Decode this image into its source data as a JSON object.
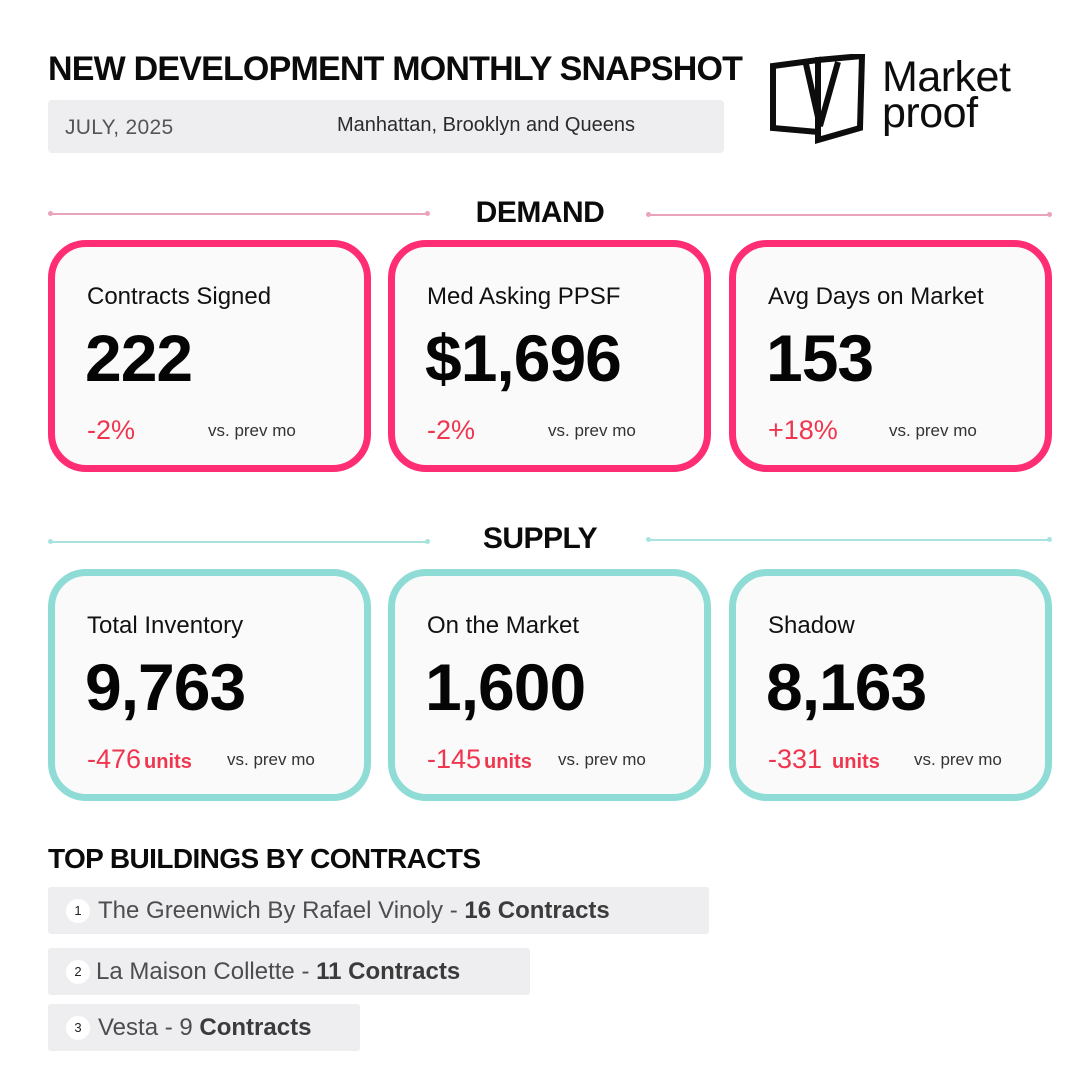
{
  "header": {
    "title": "NEW DEVELOPMENT MONTHLY SNAPSHOT",
    "date": "JULY, 2025",
    "area": "Manhattan, Brooklyn and Queens"
  },
  "logo": {
    "line1": "Market",
    "line2": "proof"
  },
  "demand": {
    "heading": "DEMAND",
    "color": "#ff2d73",
    "cards": [
      {
        "label": "Contracts Signed",
        "value": "222",
        "change": "-2%",
        "units": "",
        "vs": "vs. prev mo"
      },
      {
        "label": "Med Asking PPSF",
        "value": "$1,696",
        "change": "-2%",
        "units": "",
        "vs": "vs. prev mo"
      },
      {
        "label": "Avg Days on Market",
        "value": "153",
        "change": "+18%",
        "units": "",
        "vs": "vs. prev mo"
      }
    ]
  },
  "supply": {
    "heading": "SUPPLY",
    "color": "#8fdcd6",
    "cards": [
      {
        "label": "Total Inventory",
        "value": "9,763",
        "change": "-476",
        "units": "units",
        "vs": "vs. prev mo"
      },
      {
        "label": "On the Market",
        "value": "1,600",
        "change": "-145",
        "units": "units",
        "vs": "vs. prev mo"
      },
      {
        "label": "Shadow",
        "value": "8,163",
        "change": "-331",
        "units": "units",
        "vs": "vs. prev mo"
      }
    ]
  },
  "top_buildings": {
    "title": "TOP BUILDINGS BY CONTRACTS",
    "items": [
      {
        "rank": "1",
        "name": "The Greenwich By Rafael Vinoly - ",
        "count": "16 Contracts"
      },
      {
        "rank": "2",
        "name": "La Maison Collette - ",
        "count": "11 Contracts"
      },
      {
        "rank": "3",
        "name": "Vesta - 9 ",
        "count": "Contracts"
      }
    ]
  }
}
